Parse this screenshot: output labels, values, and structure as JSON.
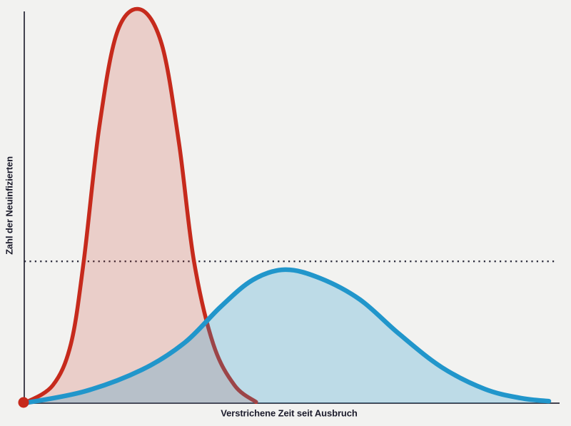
{
  "page": {
    "background": "#f2f2f0"
  },
  "chart_data": {
    "type": "area",
    "title": "",
    "xlabel": "Verstrichene Zeit seit Ausbruch",
    "ylabel": "Zahl der Neuinfizierten",
    "x_range": [
      0,
      100
    ],
    "y_range": [
      0,
      100
    ],
    "grid": false,
    "legend": "none",
    "axis_color": "#43434f",
    "label_color": "#1b1b2b",
    "threshold_line": {
      "name": "capacity-threshold-line",
      "style": "dotted",
      "color": "#262636",
      "y": 36,
      "x_start": 0,
      "x_end": 99
    },
    "origin_marker": {
      "x": 0,
      "y": 0,
      "color": "#c62a1c",
      "radius": 7.5
    },
    "series": [
      {
        "name": "steep-epidemic-curve",
        "color": "#c62a1c",
        "fill": "rgba(198,42,28,0.18)",
        "stroke_width": 5.5,
        "points": [
          [
            0,
            0
          ],
          [
            5.3,
            4.5
          ],
          [
            8.7,
            15
          ],
          [
            11.1,
            36
          ],
          [
            14,
            70
          ],
          [
            17.3,
            94
          ],
          [
            21.6,
            100
          ],
          [
            25.7,
            91
          ],
          [
            28.9,
            66
          ],
          [
            31.7,
            36
          ],
          [
            35.3,
            15
          ],
          [
            39.3,
            4.5
          ],
          [
            43.3,
            0.3
          ]
        ]
      },
      {
        "name": "flattened-epidemic-curve",
        "color": "#2196cb",
        "fill": "rgba(33,150,203,0.25)",
        "stroke_width": 6.5,
        "points": [
          [
            0,
            0
          ],
          [
            11.3,
            3
          ],
          [
            22,
            8.5
          ],
          [
            30,
            15.4
          ],
          [
            36.7,
            24.5
          ],
          [
            42.7,
            31.3
          ],
          [
            48.7,
            33.9
          ],
          [
            55.3,
            31.7
          ],
          [
            62.7,
            26.3
          ],
          [
            70,
            17.6
          ],
          [
            78,
            9.1
          ],
          [
            86,
            3.6
          ],
          [
            92.7,
            1.3
          ],
          [
            98,
            0.5
          ]
        ]
      }
    ]
  }
}
